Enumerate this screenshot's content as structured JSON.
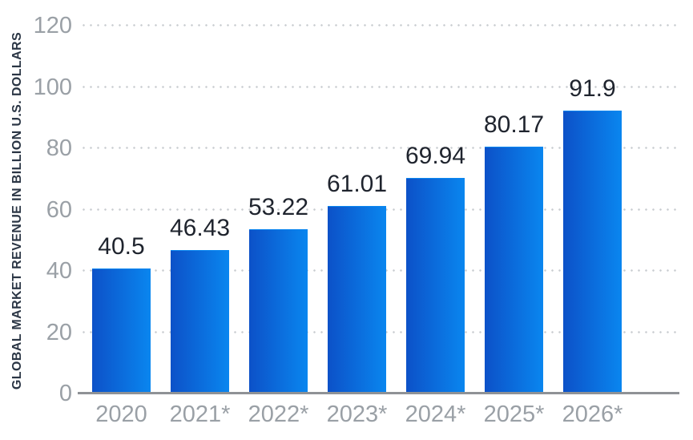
{
  "chart_data": {
    "type": "bar",
    "title": "",
    "ylabel": "GLOBAL MARKET REVENUE IN BILLION U.S. DOLLARS",
    "xlabel": "",
    "categories": [
      "2020",
      "2021*",
      "2022*",
      "2023*",
      "2024*",
      "2025*",
      "2026*"
    ],
    "values": [
      40.5,
      46.43,
      53.22,
      61.01,
      69.94,
      80.17,
      91.9
    ],
    "value_labels": [
      "40.5",
      "46.43",
      "53.22",
      "61.01",
      "69.94",
      "80.17",
      "91.9"
    ],
    "ylim": [
      0,
      120
    ],
    "yticks": [
      0,
      20,
      40,
      60,
      80,
      100,
      120
    ],
    "grid": "horizontal-dotted",
    "legend": "none",
    "colors": {
      "background": "#ffffff",
      "bar_gradient_left": "#0c51c8",
      "bar_gradient_right": "#0a86ef",
      "tick_label": "#9aa0a6",
      "value_label": "#1f242e",
      "axis_title": "#2b3645",
      "gridline": "#c9cdd1",
      "axis_line": "#8f9296"
    }
  }
}
